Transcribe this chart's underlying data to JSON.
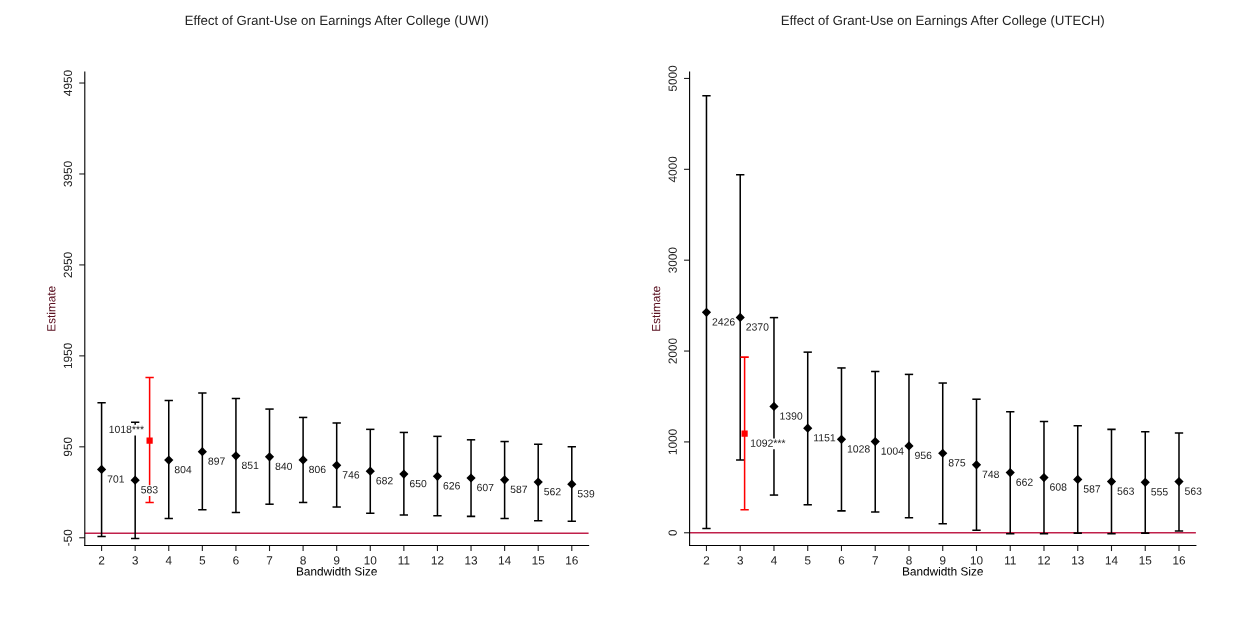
{
  "chart_data": [
    {
      "type": "scatter",
      "title": "Effect of Grant-Use on Earnings After College (UWI)",
      "xlabel": "Bandwidth Size",
      "ylabel": "Estimate",
      "xlim": [
        1.5,
        16.5
      ],
      "xticks": [
        2,
        3,
        4,
        5,
        6,
        7,
        8,
        9,
        10,
        11,
        12,
        13,
        14,
        15,
        16
      ],
      "ylim": [
        -135,
        5070
      ],
      "yticks": [
        -50,
        950,
        1950,
        2950,
        3950,
        4950
      ],
      "grid": false,
      "ref_lines": [
        {
          "axis": "y",
          "value": 0,
          "color": "#c0204a"
        }
      ],
      "series": [
        {
          "color": "#000000",
          "marker": "diamond",
          "x": [
            2,
            3,
            4,
            5,
            6,
            7,
            8,
            9,
            10,
            11,
            12,
            13,
            14,
            15,
            16
          ],
          "values": [
            701,
            583,
            804,
            897,
            851,
            840,
            806,
            746,
            682,
            650,
            626,
            607,
            587,
            562,
            539
          ],
          "errors": [
            [
              -35,
              1435
            ],
            [
              -58,
              1219
            ],
            [
              162,
              1458
            ],
            [
              258,
              1542
            ],
            [
              227,
              1481
            ],
            [
              319,
              1365
            ],
            [
              338,
              1273
            ],
            [
              288,
              1212
            ],
            [
              219,
              1142
            ],
            [
              200,
              1108
            ],
            [
              192,
              1065
            ],
            [
              185,
              1027
            ],
            [
              162,
              1008
            ],
            [
              138,
              977
            ],
            [
              131,
              950
            ]
          ],
          "value_labels": [
            "701",
            "583",
            "804",
            "897",
            "851",
            "840",
            "806",
            "746",
            "682",
            "650",
            "626",
            "607",
            "587",
            "562",
            "539"
          ]
        },
        {
          "color": "#ff0000",
          "marker": "square",
          "x": [
            3.43
          ],
          "values": [
            1018
          ],
          "errors": [
            [
              338,
              1712
            ]
          ]
        }
      ],
      "annotations": [
        {
          "text": "1018***",
          "x": 3.43,
          "y": 1018
        }
      ]
    },
    {
      "type": "scatter",
      "title": "Effect of Grant-Use on Earnings After College (UTECH)",
      "xlabel": "Bandwidth Size",
      "ylabel": "Estimate",
      "xlim": [
        1.5,
        16.5
      ],
      "xticks": [
        2,
        3,
        4,
        5,
        6,
        7,
        8,
        9,
        10,
        11,
        12,
        13,
        14,
        15,
        16
      ],
      "ylim": [
        -140,
        5070
      ],
      "yticks": [
        0,
        1000,
        2000,
        3000,
        4000,
        5000
      ],
      "grid": false,
      "ref_lines": [
        {
          "axis": "y",
          "value": 0,
          "color": "#c0204a"
        }
      ],
      "series": [
        {
          "color": "#000000",
          "marker": "diamond",
          "x": [
            2,
            3,
            4,
            5,
            6,
            7,
            8,
            9,
            10,
            11,
            12,
            13,
            14,
            15,
            16
          ],
          "values": [
            2426,
            2370,
            1390,
            1151,
            1028,
            1004,
            956,
            875,
            748,
            662,
            608,
            587,
            563,
            555,
            563
          ],
          "errors": [
            [
              47,
              4810
            ],
            [
              802,
              3940
            ],
            [
              415,
              2368
            ],
            [
              308,
              1988
            ],
            [
              241,
              1814
            ],
            [
              229,
              1775
            ],
            [
              166,
              1743
            ],
            [
              99,
              1648
            ],
            [
              28,
              1470
            ],
            [
              -12,
              1332
            ],
            [
              -12,
              1225
            ],
            [
              -4,
              1178
            ],
            [
              -12,
              1138
            ],
            [
              -4,
              1111
            ],
            [
              20,
              1099
            ]
          ],
          "value_labels": [
            "2426",
            "2370",
            "1390",
            "1151",
            "1028",
            "1004",
            "956",
            "875",
            "748",
            "662",
            "608",
            "587",
            "563",
            "555",
            "563"
          ]
        },
        {
          "color": "#ff0000",
          "marker": "square",
          "x": [
            3.13
          ],
          "values": [
            1092
          ],
          "errors": [
            [
              253,
              1933
            ]
          ],
          "value_labels": [
            "1092***"
          ]
        }
      ]
    }
  ]
}
